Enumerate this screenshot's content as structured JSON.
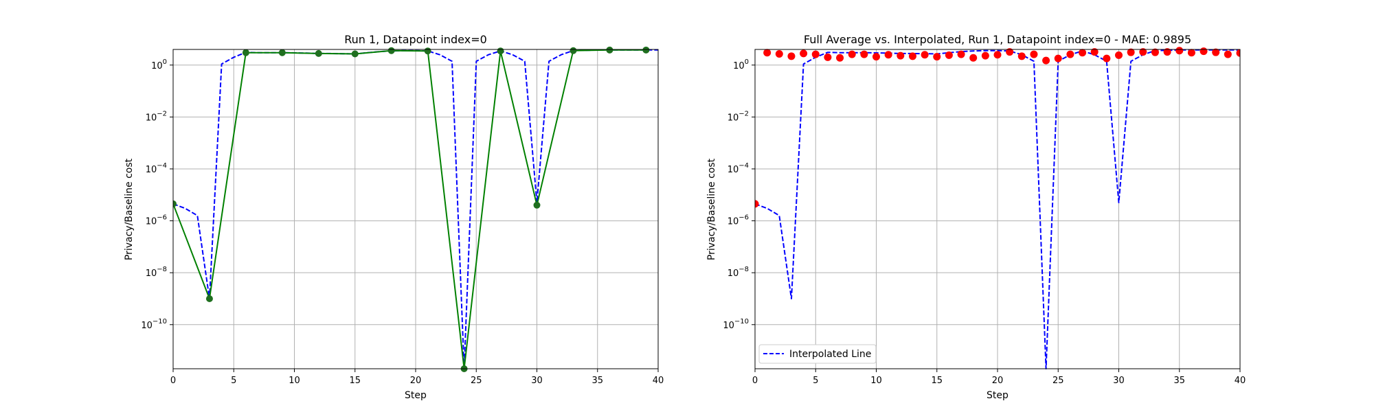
{
  "chart_data": [
    {
      "type": "line",
      "title": "Run 1, Datapoint index=0",
      "xlabel": "Step",
      "ylabel": "Privacy/Baseline cost",
      "xlim": [
        0,
        40
      ],
      "ylim": [
        2e-12,
        4
      ],
      "yscale": "log",
      "grid": true,
      "xticks": [
        0,
        5,
        10,
        15,
        20,
        25,
        30,
        35,
        40
      ],
      "xtick_labels": [
        "0",
        "5",
        "10",
        "15",
        "20",
        "25",
        "30",
        "35",
        "40"
      ],
      "yticks": [
        1e-10,
        1e-08,
        1e-06,
        0.0001,
        0.01,
        1
      ],
      "ytick_labels": [
        {
          "base": "10",
          "exp": "−10"
        },
        {
          "base": "10",
          "exp": "−8"
        },
        {
          "base": "10",
          "exp": "−6"
        },
        {
          "base": "10",
          "exp": "−4"
        },
        {
          "base": "10",
          "exp": "−2"
        },
        {
          "base": "10",
          "exp": "0"
        }
      ],
      "series": [
        {
          "style": "dashed",
          "color": "#0000ff",
          "x": [
            0,
            1,
            2,
            3,
            4,
            5,
            6,
            7,
            8,
            9,
            10,
            11,
            12,
            13,
            14,
            15,
            16,
            17,
            18,
            19,
            20,
            21,
            22,
            23,
            24,
            25,
            26,
            27,
            28,
            29,
            30,
            31,
            32,
            33,
            34,
            35,
            36,
            37,
            38,
            39,
            40
          ],
          "y": [
            4.5e-06,
            3e-06,
            1.6e-06,
            1e-09,
            1.1,
            2.0,
            3.1,
            3.0,
            3.0,
            3.0,
            2.95,
            2.9,
            2.8,
            2.8,
            2.75,
            2.7,
            3.0,
            3.3,
            3.5,
            3.6,
            3.6,
            3.5,
            2.5,
            1.4,
            2e-12,
            1.4,
            2.5,
            3.5,
            2.5,
            1.4,
            5e-06,
            1.4,
            2.5,
            3.6,
            3.7,
            3.8,
            3.8,
            3.8,
            3.8,
            3.8,
            3.8
          ]
        },
        {
          "style": "solid",
          "color": "#008000",
          "marker_color": "#1f6f1f",
          "x": [
            0,
            3,
            6,
            9,
            12,
            15,
            18,
            21,
            24,
            27,
            30,
            33,
            36,
            39
          ],
          "y": [
            4.5e-06,
            1e-09,
            3.0,
            3.0,
            2.8,
            2.7,
            3.6,
            3.5,
            2e-12,
            3.5,
            4e-06,
            3.6,
            3.8,
            3.8
          ]
        }
      ]
    },
    {
      "type": "line",
      "title": "Full Average vs. Interpolated, Run 1, Datapoint index=0 - MAE: 0.9895",
      "xlabel": "Step",
      "ylabel": "Privacy/Baseline cost",
      "xlim": [
        0,
        40
      ],
      "ylim": [
        2e-12,
        4
      ],
      "yscale": "log",
      "grid": true,
      "legend_position": "lower-left",
      "xticks": [
        0,
        5,
        10,
        15,
        20,
        25,
        30,
        35,
        40
      ],
      "xtick_labels": [
        "0",
        "5",
        "10",
        "15",
        "20",
        "25",
        "30",
        "35",
        "40"
      ],
      "yticks": [
        1e-10,
        1e-08,
        1e-06,
        0.0001,
        0.01,
        1
      ],
      "ytick_labels": [
        {
          "base": "10",
          "exp": "−10"
        },
        {
          "base": "10",
          "exp": "−8"
        },
        {
          "base": "10",
          "exp": "−6"
        },
        {
          "base": "10",
          "exp": "−4"
        },
        {
          "base": "10",
          "exp": "−2"
        },
        {
          "base": "10",
          "exp": "0"
        }
      ],
      "series": [
        {
          "name": "Interpolated Line",
          "style": "dashed",
          "color": "#0000ff",
          "x": [
            0,
            1,
            2,
            3,
            4,
            5,
            6,
            7,
            8,
            9,
            10,
            11,
            12,
            13,
            14,
            15,
            16,
            17,
            18,
            19,
            20,
            21,
            22,
            23,
            24,
            25,
            26,
            27,
            28,
            29,
            30,
            31,
            32,
            33,
            34,
            35,
            36,
            37,
            38,
            39,
            40
          ],
          "y": [
            4.5e-06,
            3e-06,
            1.6e-06,
            1e-09,
            1.1,
            2.0,
            3.1,
            3.0,
            3.0,
            3.0,
            2.95,
            2.9,
            2.8,
            2.8,
            2.75,
            2.7,
            3.0,
            3.3,
            3.5,
            3.6,
            3.6,
            3.5,
            2.5,
            1.4,
            2e-12,
            1.4,
            2.5,
            3.5,
            2.5,
            1.4,
            5e-06,
            1.4,
            2.5,
            3.6,
            3.7,
            3.8,
            3.8,
            3.8,
            3.8,
            3.8,
            3.8
          ]
        },
        {
          "style": "scatter",
          "color": "#ff0000",
          "x": [
            0,
            1,
            2,
            3,
            4,
            5,
            6,
            7,
            8,
            9,
            10,
            11,
            12,
            13,
            14,
            15,
            16,
            17,
            18,
            19,
            20,
            21,
            22,
            23,
            24,
            25,
            26,
            27,
            28,
            29,
            30,
            31,
            32,
            33,
            34,
            35,
            36,
            37,
            38,
            39,
            40
          ],
          "y": [
            4.5e-06,
            3.0,
            2.7,
            2.2,
            2.8,
            2.6,
            2.0,
            1.9,
            2.6,
            2.6,
            2.1,
            2.5,
            2.3,
            2.2,
            2.5,
            2.1,
            2.4,
            2.6,
            1.9,
            2.3,
            2.5,
            3.2,
            2.2,
            2.6,
            1.5,
            1.8,
            2.6,
            3.0,
            3.2,
            1.8,
            2.4,
            3.1,
            3.2,
            3.1,
            3.2,
            3.6,
            3.0,
            3.4,
            3.1,
            2.6,
            2.9
          ]
        }
      ]
    }
  ]
}
